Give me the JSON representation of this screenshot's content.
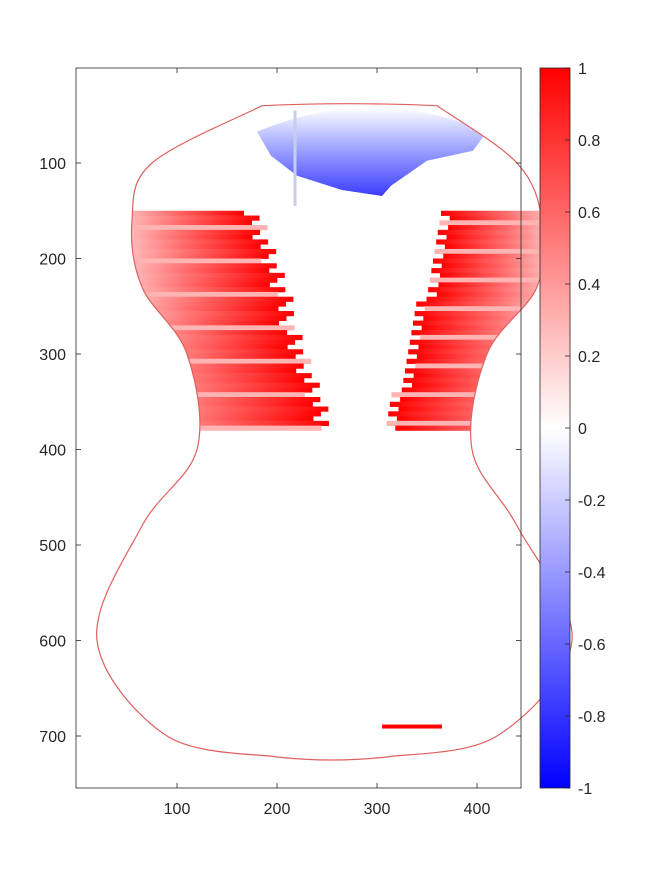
{
  "chart_data": {
    "type": "heatmap",
    "title": "",
    "xlabel": "",
    "ylabel": "",
    "xlim": [
      0,
      445
    ],
    "ylim": [
      0,
      755
    ],
    "y_reversed": true,
    "x_ticks": [
      100,
      200,
      300,
      400
    ],
    "y_ticks": [
      100,
      200,
      300,
      400,
      500,
      600,
      700
    ],
    "colorbar": {
      "min": -1,
      "max": 1,
      "ticks": [
        1,
        0.8,
        0.6,
        0.4,
        0.2,
        0,
        -0.2,
        -0.4,
        -0.6,
        -0.8,
        -1
      ],
      "colormap": [
        "#0000ff",
        "#ffffff",
        "#ff0000"
      ]
    },
    "outline": {
      "color": "#e06060",
      "samples": [
        {
          "y": 40,
          "left": 185,
          "right": 360
        },
        {
          "y": 100,
          "left": 75,
          "right": 440
        },
        {
          "y": 160,
          "left": 55,
          "right": 465
        },
        {
          "y": 230,
          "left": 65,
          "right": 460
        },
        {
          "y": 300,
          "left": 110,
          "right": 410
        },
        {
          "y": 400,
          "left": 120,
          "right": 395
        },
        {
          "y": 480,
          "left": 65,
          "right": 440
        },
        {
          "y": 600,
          "left": 20,
          "right": 495
        },
        {
          "y": 700,
          "left": 90,
          "right": 420
        },
        {
          "y": 722,
          "left": 200,
          "right": 310
        }
      ]
    },
    "regions": [
      {
        "name": "upper-blue-lobe",
        "value": -0.8,
        "y_range": [
          40,
          145
        ],
        "x_range": [
          180,
          410
        ]
      },
      {
        "name": "left-red-band",
        "value": 1.0,
        "y_range": [
          150,
          380
        ],
        "x_range": [
          55,
          300
        ]
      },
      {
        "name": "right-red-band",
        "value": 1.0,
        "y_range": [
          150,
          380
        ],
        "x_range": [
          320,
          465
        ]
      },
      {
        "name": "lower-body",
        "value": 0.0,
        "y_range": [
          380,
          722
        ],
        "x_range": [
          20,
          495
        ]
      },
      {
        "name": "small-red-patch",
        "value": 1.0,
        "y_range": [
          688,
          692
        ],
        "x_range": [
          305,
          365
        ]
      }
    ]
  }
}
